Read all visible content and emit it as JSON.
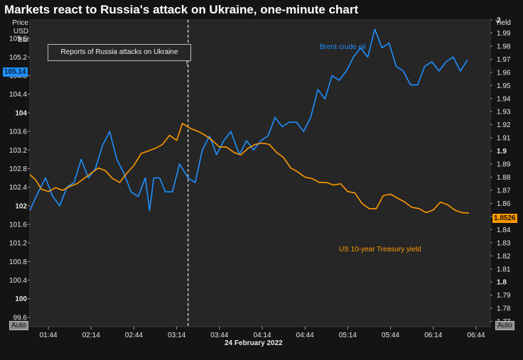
{
  "title": "Markets react to Russia's attack on Ukraine, one-minute chart",
  "left_axis_header": [
    "Price",
    "USD",
    "Bbl"
  ],
  "right_axis_header": "Yield",
  "auto_label": "Auto",
  "x_axis_date": "24 February 2022",
  "annotation": "Reports of Russia attacks on Ukraine",
  "last_values": {
    "brent": "105.14",
    "ust": "1.8526"
  },
  "colors": {
    "brent": "#1e90ff",
    "ust": "#ff9900",
    "background": "#262626"
  },
  "chart_data": {
    "type": "line",
    "title": "Markets react to Russia's attack on Ukraine, one-minute chart",
    "x_label": "24 February 2022",
    "x_tick_labels": [
      "01:44",
      "02:14",
      "02:44",
      "03:14",
      "03:44",
      "04:14",
      "04:44",
      "05:14",
      "05:44",
      "06:14",
      "06:44"
    ],
    "x_ticks": [
      "01:44",
      "02:14",
      "02:44",
      "03:14",
      "03:44",
      "04:14",
      "04:44",
      "05:14",
      "05:44",
      "06:14",
      "06:44"
    ],
    "x_range": [
      "01:31",
      "06:54"
    ],
    "event_marker": {
      "time": "03:22",
      "label": "Reports of Russia attacks on Ukraine"
    },
    "left_axis": {
      "label": "Price USD Bbl",
      "range": [
        99.4,
        106.0
      ],
      "tick_labels": [
        "99.6",
        "100",
        "100.4",
        "100.8",
        "101.2",
        "101.6",
        "102",
        "102.4",
        "102.8",
        "103.2",
        "103.6",
        "104",
        "104.4",
        "104.8",
        "105.2",
        "105.6"
      ],
      "bold_ticks": [
        "100",
        "102",
        "104"
      ]
    },
    "right_axis": {
      "label": "Yield",
      "range": [
        1.766,
        2.0
      ],
      "tick_labels": [
        "1.77",
        "1.78",
        "1.79",
        "1.8",
        "1.81",
        "1.82",
        "1.83",
        "1.84",
        "1.85",
        "1.86",
        "1.87",
        "1.88",
        "1.89",
        "1.9",
        "1.91",
        "1.92",
        "1.93",
        "1.94",
        "1.95",
        "1.96",
        "1.97",
        "1.98",
        "1.99",
        "2"
      ],
      "bold_ticks": [
        "1.8",
        "1.9",
        "2"
      ]
    },
    "series": [
      {
        "name": "Brent crude oil",
        "axis": "left",
        "color": "#1e90ff",
        "x": [
          "01:31",
          "01:37",
          "01:42",
          "01:47",
          "01:52",
          "01:57",
          "02:02",
          "02:07",
          "02:12",
          "02:17",
          "02:22",
          "02:27",
          "02:32",
          "02:37",
          "02:42",
          "02:47",
          "02:52",
          "02:55",
          "02:58",
          "03:02",
          "03:06",
          "03:11",
          "03:16",
          "03:22",
          "03:27",
          "03:32",
          "03:37",
          "03:42",
          "03:47",
          "03:52",
          "03:58",
          "04:03",
          "04:08",
          "04:13",
          "04:18",
          "04:23",
          "04:28",
          "04:33",
          "04:38",
          "04:43",
          "04:48",
          "04:53",
          "04:58",
          "05:03",
          "05:08",
          "05:13",
          "05:18",
          "05:23",
          "05:28",
          "05:33",
          "05:38",
          "05:43",
          "05:48",
          "05:53",
          "05:58",
          "06:03",
          "06:08",
          "06:13",
          "06:18",
          "06:23",
          "06:28",
          "06:33",
          "06:38"
        ],
        "values": [
          101.9,
          102.3,
          102.6,
          102.2,
          102.0,
          102.4,
          102.5,
          103.0,
          102.6,
          102.8,
          103.3,
          103.6,
          103.0,
          102.7,
          102.3,
          102.2,
          102.6,
          101.9,
          102.6,
          102.6,
          102.3,
          102.3,
          102.9,
          102.6,
          102.5,
          103.2,
          103.5,
          103.1,
          103.4,
          103.6,
          103.1,
          103.4,
          103.2,
          103.4,
          103.5,
          103.9,
          103.7,
          103.8,
          103.8,
          103.6,
          103.9,
          104.5,
          104.3,
          104.8,
          104.7,
          104.9,
          105.2,
          105.4,
          105.2,
          105.8,
          105.4,
          105.5,
          105.0,
          104.9,
          104.6,
          104.6,
          105.0,
          105.1,
          104.9,
          105.1,
          105.2,
          104.9,
          105.14
        ]
      },
      {
        "name": "US 10-year Treasury yield",
        "axis": "right",
        "color": "#ff9900",
        "x": [
          "01:31",
          "01:35",
          "01:39",
          "01:44",
          "01:49",
          "01:54",
          "01:59",
          "02:04",
          "02:09",
          "02:14",
          "02:19",
          "02:24",
          "02:29",
          "02:34",
          "02:39",
          "02:44",
          "02:49",
          "02:54",
          "02:59",
          "03:04",
          "03:09",
          "03:14",
          "03:18",
          "03:24",
          "03:29",
          "03:34",
          "03:39",
          "03:44",
          "03:49",
          "03:54",
          "03:59",
          "04:04",
          "04:09",
          "04:14",
          "04:19",
          "04:24",
          "04:29",
          "04:34",
          "04:39",
          "04:44",
          "04:49",
          "04:54",
          "04:59",
          "05:04",
          "05:09",
          "05:14",
          "05:19",
          "05:24",
          "05:29",
          "05:34",
          "05:39",
          "05:44",
          "05:49",
          "05:54",
          "05:59",
          "06:04",
          "06:09",
          "06:14",
          "06:19",
          "06:24",
          "06:29",
          "06:34",
          "06:39"
        ],
        "values": [
          1.882,
          1.878,
          1.871,
          1.869,
          1.872,
          1.87,
          1.873,
          1.875,
          1.879,
          1.883,
          1.887,
          1.885,
          1.879,
          1.876,
          1.883,
          1.889,
          1.898,
          1.9,
          1.902,
          1.905,
          1.912,
          1.908,
          1.921,
          1.917,
          1.915,
          1.912,
          1.908,
          1.903,
          1.903,
          1.899,
          1.897,
          1.902,
          1.905,
          1.906,
          1.905,
          1.899,
          1.895,
          1.887,
          1.884,
          1.88,
          1.879,
          1.876,
          1.876,
          1.874,
          1.875,
          1.869,
          1.868,
          1.86,
          1.856,
          1.856,
          1.866,
          1.867,
          1.864,
          1.861,
          1.857,
          1.856,
          1.853,
          1.855,
          1.861,
          1.859,
          1.855,
          1.853,
          1.8526
        ]
      }
    ]
  }
}
